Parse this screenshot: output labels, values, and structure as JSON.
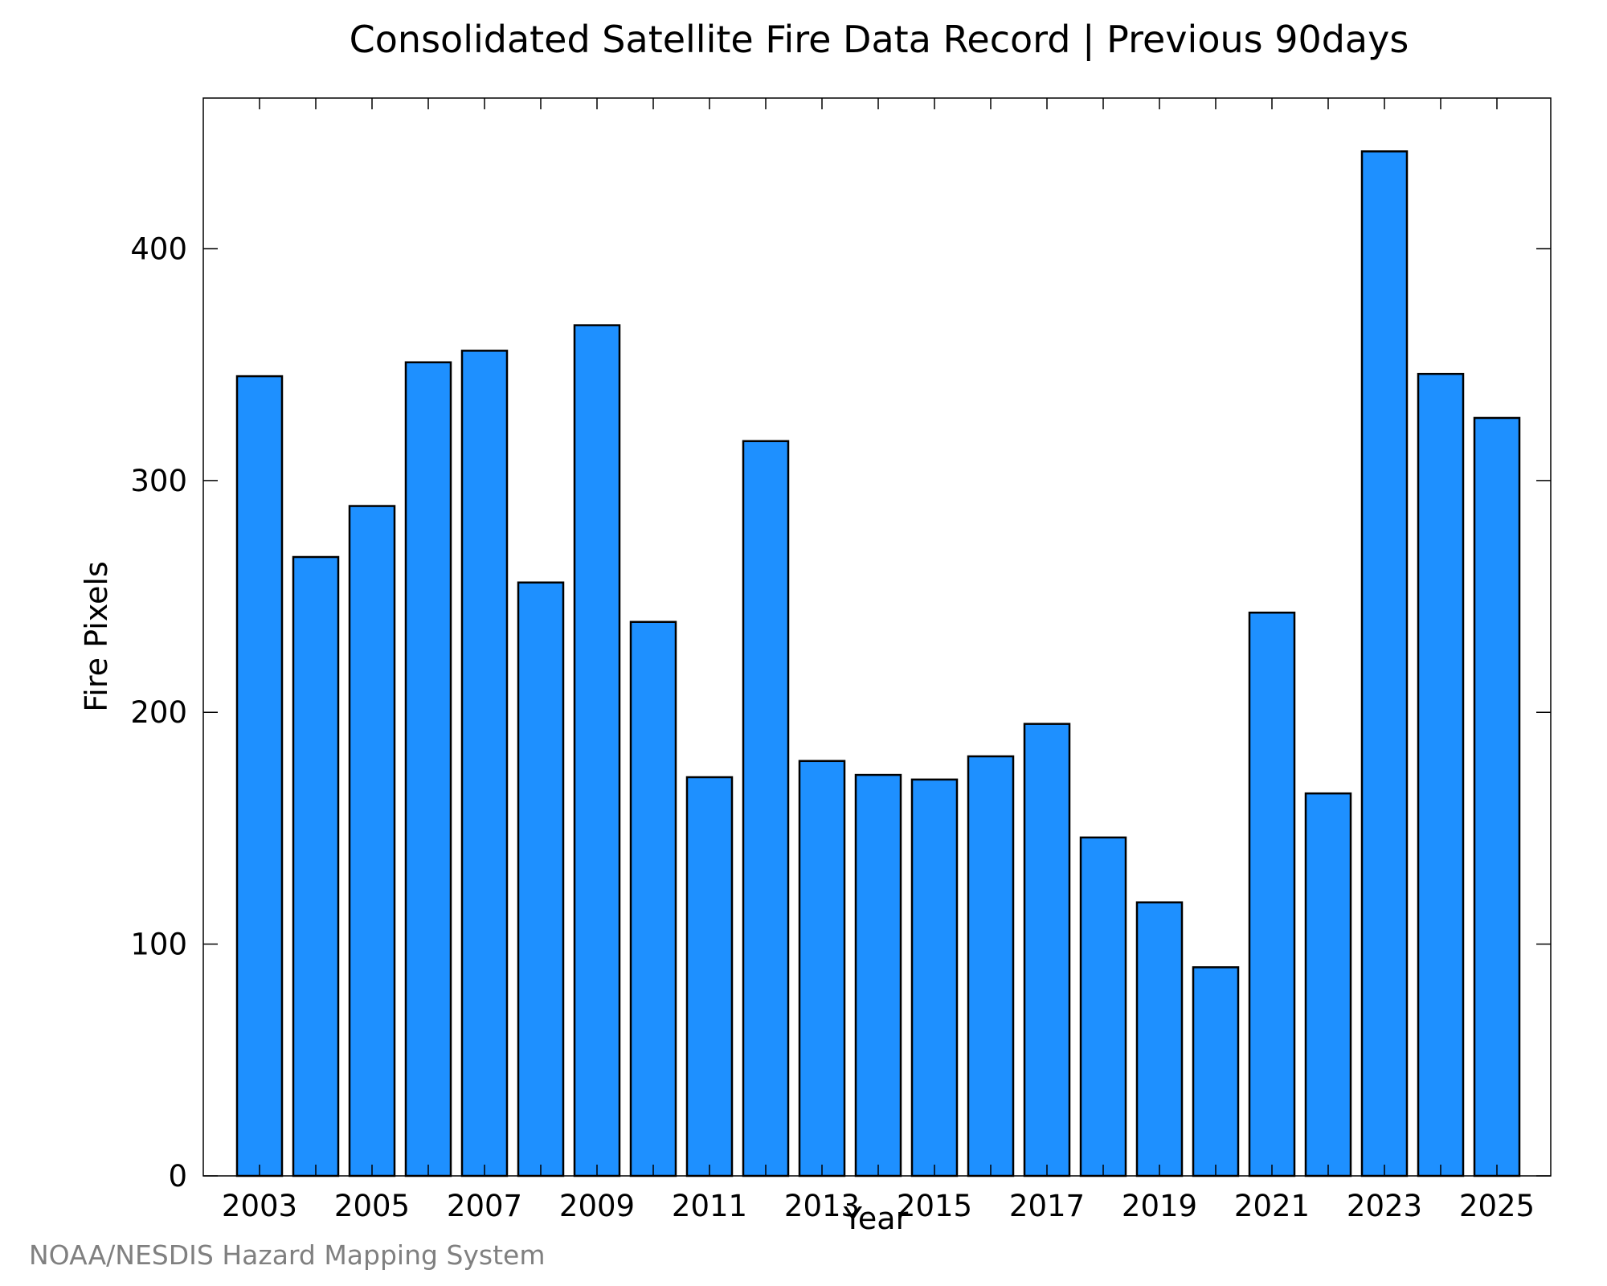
{
  "chart_data": {
    "type": "bar",
    "title": "Consolidated Satellite Fire Data Record | Previous 90days",
    "xlabel": "Year",
    "ylabel": "Fire Pixels",
    "credit": "NOAA/NESDIS Hazard Mapping System",
    "categories": [
      "2003",
      "2004",
      "2005",
      "2006",
      "2007",
      "2008",
      "2009",
      "2010",
      "2011",
      "2012",
      "2013",
      "2014",
      "2015",
      "2016",
      "2017",
      "2018",
      "2019",
      "2020",
      "2021",
      "2022",
      "2023",
      "2024",
      "2025"
    ],
    "values": [
      345,
      267,
      289,
      351,
      356,
      256,
      367,
      239,
      172,
      317,
      179,
      173,
      171,
      181,
      195,
      146,
      118,
      90,
      243,
      165,
      442,
      346,
      327
    ],
    "xticks": [
      "2003",
      "2005",
      "2007",
      "2009",
      "2011",
      "2013",
      "2015",
      "2017",
      "2019",
      "2021",
      "2023",
      "2025"
    ],
    "yticks": [
      0,
      100,
      200,
      300,
      400
    ],
    "ylim": [
      0,
      465
    ],
    "grid": false,
    "bar_color": "#1e90ff",
    "edge_color": "#000000"
  }
}
